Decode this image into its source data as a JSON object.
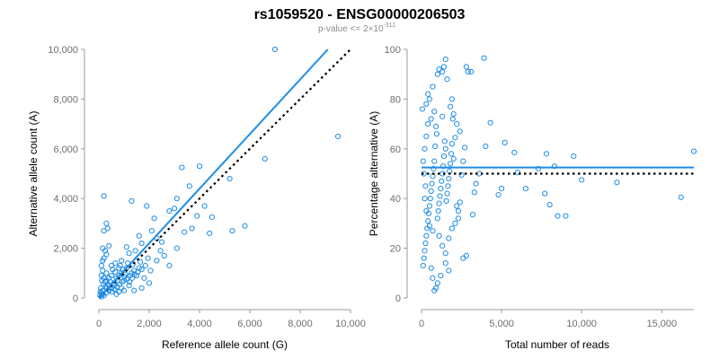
{
  "header": {
    "title": "rs1059520 - ENSG00000206503",
    "pvalue_prefix": "p-value <= 2×10",
    "pvalue_exponent": "-311"
  },
  "colors": {
    "points": "#1e8ce6",
    "fit_line": "#1e8ce6",
    "reference_line": "#000000",
    "axis": "#9a9a9a"
  },
  "chart_data": [
    {
      "type": "scatter",
      "xlabel": "Reference allele count (G)",
      "ylabel": "Alternative allele count (A)",
      "xlim": [
        0,
        10000
      ],
      "ylim": [
        0,
        10000
      ],
      "xticks": [
        0,
        2000,
        4000,
        6000,
        8000,
        10000
      ],
      "yticks": [
        0,
        2000,
        4000,
        6000,
        8000,
        10000
      ],
      "xtick_labels": [
        "0",
        "2,000",
        "4,000",
        "6,000",
        "8,000",
        "10,000"
      ],
      "ytick_labels": [
        "0",
        "2,000",
        "4,000",
        "6,000",
        "8,000",
        "10,000"
      ],
      "grid": false,
      "fit_line": {
        "x": [
          0,
          9100
        ],
        "y": [
          0,
          10000
        ],
        "style": "solid"
      },
      "reference_line": {
        "x": [
          0,
          10000
        ],
        "y": [
          0,
          10000
        ],
        "style": "dotted"
      },
      "points": [
        [
          7000,
          10000
        ],
        [
          9500,
          6500
        ],
        [
          6600,
          5600
        ],
        [
          4000,
          5300
        ],
        [
          3300,
          5250
        ],
        [
          3600,
          4500
        ],
        [
          5200,
          4800
        ],
        [
          3100,
          4000
        ],
        [
          4200,
          3700
        ],
        [
          3000,
          3600
        ],
        [
          4500,
          3250
        ],
        [
          3900,
          3300
        ],
        [
          1300,
          3900
        ],
        [
          1900,
          3700
        ],
        [
          2800,
          3500
        ],
        [
          2200,
          3200
        ],
        [
          3400,
          2650
        ],
        [
          3700,
          2800
        ],
        [
          4400,
          2600
        ],
        [
          5800,
          2900
        ],
        [
          5300,
          2700
        ],
        [
          200,
          4100
        ],
        [
          300,
          3000
        ],
        [
          200,
          2700
        ],
        [
          350,
          2800
        ],
        [
          2100,
          2700
        ],
        [
          2300,
          2400
        ],
        [
          2500,
          2250
        ],
        [
          1600,
          2500
        ],
        [
          1700,
          2200
        ],
        [
          2600,
          1700
        ],
        [
          2800,
          1300
        ],
        [
          3100,
          2000
        ],
        [
          1950,
          1600
        ],
        [
          1650,
          1450
        ],
        [
          1200,
          1800
        ],
        [
          1450,
          1900
        ],
        [
          1100,
          2050
        ],
        [
          900,
          1500
        ],
        [
          400,
          2100
        ],
        [
          150,
          2000
        ],
        [
          250,
          1900
        ],
        [
          300,
          1750
        ],
        [
          200,
          1600
        ],
        [
          150,
          1500
        ],
        [
          1300,
          1000
        ],
        [
          1500,
          900
        ],
        [
          1800,
          800
        ],
        [
          2000,
          600
        ],
        [
          1400,
          300
        ],
        [
          1700,
          400
        ],
        [
          1100,
          1200
        ],
        [
          800,
          900
        ],
        [
          1000,
          700
        ],
        [
          1200,
          500
        ],
        [
          1600,
          1200
        ],
        [
          1850,
          1300
        ],
        [
          2050,
          1100
        ],
        [
          2300,
          1500
        ],
        [
          2450,
          1900
        ],
        [
          100,
          1300
        ],
        [
          150,
          1100
        ],
        [
          300,
          1000
        ],
        [
          500,
          1300
        ],
        [
          650,
          1400
        ],
        [
          800,
          1200
        ],
        [
          950,
          1150
        ],
        [
          1150,
          1400
        ],
        [
          1350,
          1350
        ],
        [
          750,
          700
        ],
        [
          600,
          600
        ],
        [
          700,
          800
        ],
        [
          500,
          900
        ],
        [
          400,
          800
        ],
        [
          300,
          700
        ],
        [
          600,
          500
        ],
        [
          500,
          400
        ],
        [
          400,
          300
        ],
        [
          300,
          200
        ],
        [
          200,
          100
        ],
        [
          100,
          50
        ],
        [
          150,
          300
        ],
        [
          250,
          450
        ],
        [
          450,
          650
        ],
        [
          350,
          550
        ],
        [
          200,
          800
        ],
        [
          100,
          900
        ],
        [
          900,
          400
        ],
        [
          1000,
          300
        ],
        [
          800,
          250
        ],
        [
          700,
          150
        ],
        [
          900,
          1000
        ],
        [
          1050,
          950
        ],
        [
          1250,
          900
        ],
        [
          1400,
          1100
        ],
        [
          1550,
          1050
        ],
        [
          1700,
          1150
        ],
        [
          550,
          1150
        ],
        [
          650,
          1050
        ],
        [
          850,
          1300
        ],
        [
          100,
          200
        ],
        [
          180,
          550
        ],
        [
          250,
          650
        ],
        [
          320,
          400
        ],
        [
          420,
          500
        ],
        [
          520,
          250
        ],
        [
          620,
          350
        ],
        [
          720,
          450
        ],
        [
          820,
          550
        ],
        [
          920,
          650
        ],
        [
          1020,
          850
        ],
        [
          1120,
          750
        ],
        [
          1220,
          650
        ],
        [
          1320,
          800
        ],
        [
          1420,
          950
        ],
        [
          80,
          400
        ],
        [
          120,
          700
        ],
        [
          50,
          100
        ],
        [
          60,
          250
        ],
        [
          140,
          150
        ]
      ]
    },
    {
      "type": "scatter",
      "xlabel": "Total number of reads",
      "ylabel": "Percentage alternative (A)",
      "xlim": [
        0,
        17000
      ],
      "ylim": [
        0,
        100
      ],
      "xticks": [
        0,
        5000,
        10000,
        15000
      ],
      "yticks": [
        0,
        20,
        40,
        60,
        80,
        100
      ],
      "xtick_labels": [
        "0",
        "5,000",
        "10,000",
        "15,000"
      ],
      "ytick_labels": [
        "0",
        "20",
        "40",
        "60",
        "80",
        "100"
      ],
      "grid": false,
      "fit_line": {
        "x": [
          0,
          17000
        ],
        "y": [
          52.5,
          52.5
        ],
        "style": "solid"
      },
      "reference_line": {
        "x": [
          0,
          17000
        ],
        "y": [
          50,
          50
        ],
        "style": "dotted"
      },
      "points": [
        [
          17000,
          59
        ],
        [
          16200,
          40.5
        ],
        [
          12200,
          46.5
        ],
        [
          10000,
          47.5
        ],
        [
          9000,
          33
        ],
        [
          8500,
          33
        ],
        [
          8300,
          53
        ],
        [
          8000,
          37.5
        ],
        [
          7700,
          42
        ],
        [
          7300,
          52
        ],
        [
          7800,
          58
        ],
        [
          9500,
          57
        ],
        [
          6500,
          44
        ],
        [
          6000,
          50.5
        ],
        [
          5800,
          58.5
        ],
        [
          5200,
          62.5
        ],
        [
          5000,
          44
        ],
        [
          4800,
          41.5
        ],
        [
          4300,
          70.5
        ],
        [
          4000,
          61
        ],
        [
          3900,
          96.5
        ],
        [
          3600,
          50
        ],
        [
          3400,
          46
        ],
        [
          3300,
          42.5
        ],
        [
          3200,
          33.5
        ],
        [
          3100,
          91
        ],
        [
          2900,
          91
        ],
        [
          2800,
          93
        ],
        [
          2700,
          60.5
        ],
        [
          2600,
          55
        ],
        [
          2500,
          49.5
        ],
        [
          2400,
          38.5
        ],
        [
          2300,
          35
        ],
        [
          2200,
          37
        ],
        [
          2100,
          64.5
        ],
        [
          2000,
          56
        ],
        [
          1950,
          72
        ],
        [
          1900,
          62
        ],
        [
          1850,
          58
        ],
        [
          1800,
          54
        ],
        [
          1750,
          51
        ],
        [
          1700,
          48
        ],
        [
          1650,
          45
        ],
        [
          1600,
          42
        ],
        [
          1550,
          39
        ],
        [
          1500,
          60
        ],
        [
          1450,
          63
        ],
        [
          1400,
          57
        ],
        [
          1350,
          53
        ],
        [
          1300,
          50
        ],
        [
          1250,
          47
        ],
        [
          1200,
          44
        ],
        [
          1150,
          41
        ],
        [
          1100,
          38
        ],
        [
          1050,
          35
        ],
        [
          1000,
          32
        ],
        [
          950,
          66
        ],
        [
          900,
          69
        ],
        [
          850,
          61
        ],
        [
          800,
          55
        ],
        [
          750,
          52
        ],
        [
          700,
          49
        ],
        [
          650,
          46
        ],
        [
          600,
          43
        ],
        [
          550,
          40
        ],
        [
          500,
          37
        ],
        [
          450,
          34
        ],
        [
          400,
          31
        ],
        [
          350,
          28
        ],
        [
          300,
          25
        ],
        [
          250,
          22
        ],
        [
          200,
          19
        ],
        [
          150,
          16
        ],
        [
          100,
          13
        ],
        [
          50,
          76
        ],
        [
          2800,
          17
        ],
        [
          2600,
          16
        ],
        [
          1700,
          11
        ],
        [
          1500,
          14
        ],
        [
          1200,
          9
        ],
        [
          1000,
          6
        ],
        [
          900,
          4
        ],
        [
          800,
          3
        ],
        [
          700,
          8
        ],
        [
          600,
          12
        ],
        [
          1300,
          91
        ],
        [
          1400,
          93
        ],
        [
          1500,
          96
        ],
        [
          1000,
          90
        ],
        [
          1100,
          92
        ],
        [
          1600,
          88
        ],
        [
          700,
          85
        ],
        [
          500,
          80
        ],
        [
          400,
          82
        ],
        [
          300,
          78
        ],
        [
          2000,
          74
        ],
        [
          2200,
          70
        ],
        [
          2400,
          67
        ],
        [
          1800,
          77
        ],
        [
          1300,
          73
        ],
        [
          1100,
          25
        ],
        [
          1300,
          21
        ],
        [
          1500,
          18
        ],
        [
          1700,
          24
        ],
        [
          1900,
          28
        ],
        [
          2100,
          30
        ],
        [
          2300,
          32
        ],
        [
          700,
          27
        ],
        [
          500,
          29
        ],
        [
          300,
          35
        ],
        [
          200,
          40
        ],
        [
          250,
          45
        ],
        [
          150,
          50
        ],
        [
          100,
          55
        ],
        [
          200,
          60
        ],
        [
          300,
          65
        ],
        [
          400,
          70
        ],
        [
          600,
          72
        ],
        [
          800,
          75
        ],
        [
          1900,
          80
        ]
      ]
    }
  ]
}
